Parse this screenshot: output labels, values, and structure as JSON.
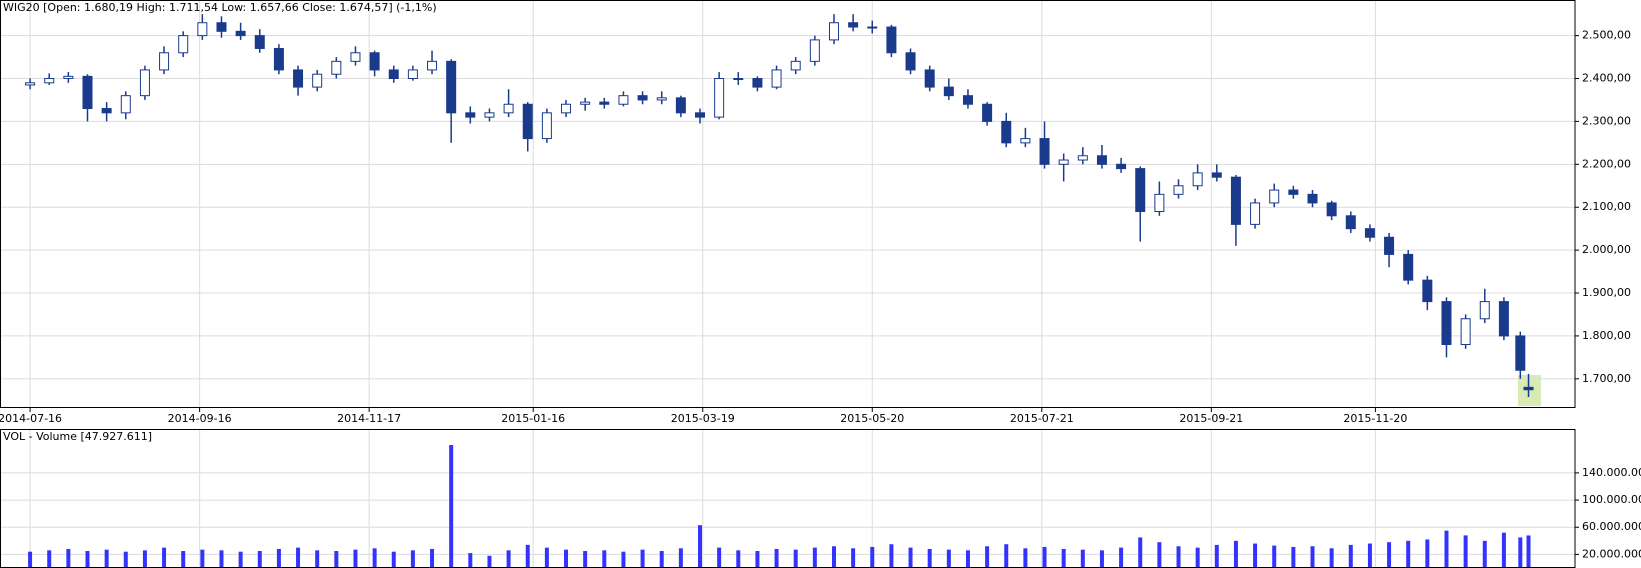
{
  "chart_data": [
    {
      "type": "candlestick",
      "title": "WIG20 [Open: 1.680,19  High: 1.711,54  Low: 1.657,66  Close: 1.674,57] (-1,1%)",
      "up_color": "#ffffff",
      "down_color": "#1a3a8c",
      "edge_color": "#1a3a8c",
      "grid": true,
      "x": [
        "2014-07-16",
        "2014-07-23",
        "2014-07-30",
        "2014-08-06",
        "2014-08-13",
        "2014-08-20",
        "2014-08-27",
        "2014-09-03",
        "2014-09-10",
        "2014-09-17",
        "2014-09-24",
        "2014-10-01",
        "2014-10-08",
        "2014-10-15",
        "2014-10-22",
        "2014-10-29",
        "2014-11-05",
        "2014-11-12",
        "2014-11-19",
        "2014-11-26",
        "2014-12-03",
        "2014-12-10",
        "2014-12-17",
        "2014-12-24",
        "2014-12-31",
        "2015-01-07",
        "2015-01-14",
        "2015-01-21",
        "2015-01-28",
        "2015-02-04",
        "2015-02-11",
        "2015-02-18",
        "2015-02-25",
        "2015-03-04",
        "2015-03-11",
        "2015-03-18",
        "2015-03-25",
        "2015-04-01",
        "2015-04-08",
        "2015-04-15",
        "2015-04-22",
        "2015-04-29",
        "2015-05-06",
        "2015-05-13",
        "2015-05-20",
        "2015-05-27",
        "2015-06-03",
        "2015-06-10",
        "2015-06-17",
        "2015-06-24",
        "2015-07-01",
        "2015-07-08",
        "2015-07-15",
        "2015-07-22",
        "2015-07-29",
        "2015-08-05",
        "2015-08-12",
        "2015-08-19",
        "2015-08-26",
        "2015-09-02",
        "2015-09-09",
        "2015-09-16",
        "2015-09-23",
        "2015-09-30",
        "2015-10-07",
        "2015-10-14",
        "2015-10-21",
        "2015-10-28",
        "2015-11-04",
        "2015-11-11",
        "2015-11-18",
        "2015-11-25",
        "2015-12-02",
        "2015-12-09",
        "2015-12-16",
        "2015-12-23",
        "2015-12-30",
        "2016-01-06",
        "2016-01-12",
        "2016-01-15"
      ],
      "open": [
        2385,
        2390,
        2400,
        2405,
        2330,
        2320,
        2360,
        2420,
        2460,
        2500,
        2530,
        2510,
        2500,
        2470,
        2420,
        2380,
        2410,
        2440,
        2460,
        2420,
        2400,
        2420,
        2440,
        2320,
        2310,
        2320,
        2340,
        2260,
        2320,
        2340,
        2345,
        2340,
        2360,
        2350,
        2355,
        2320,
        2310,
        2400,
        2400,
        2380,
        2420,
        2440,
        2490,
        2530,
        2520,
        2520,
        2460,
        2420,
        2380,
        2360,
        2340,
        2300,
        2250,
        2260,
        2200,
        2210,
        2220,
        2200,
        2190,
        2090,
        2130,
        2150,
        2180,
        2170,
        2060,
        2110,
        2140,
        2130,
        2110,
        2080,
        2050,
        2030,
        1990,
        1930,
        1880,
        1780,
        1840,
        1880,
        1800,
        1680.19
      ],
      "high": [
        2400,
        2412,
        2415,
        2410,
        2345,
        2370,
        2430,
        2475,
        2510,
        2550,
        2545,
        2530,
        2515,
        2480,
        2430,
        2420,
        2450,
        2475,
        2465,
        2430,
        2430,
        2465,
        2445,
        2335,
        2330,
        2375,
        2345,
        2330,
        2350,
        2355,
        2355,
        2370,
        2370,
        2370,
        2360,
        2330,
        2415,
        2415,
        2405,
        2430,
        2450,
        2500,
        2550,
        2550,
        2535,
        2525,
        2470,
        2430,
        2400,
        2375,
        2345,
        2320,
        2285,
        2300,
        2225,
        2240,
        2245,
        2215,
        2195,
        2160,
        2165,
        2200,
        2200,
        2175,
        2120,
        2155,
        2150,
        2140,
        2115,
        2090,
        2060,
        2040,
        2000,
        1940,
        1890,
        1850,
        1910,
        1890,
        1810,
        1711.54
      ],
      "low": [
        2375,
        2385,
        2390,
        2300,
        2300,
        2305,
        2350,
        2410,
        2450,
        2490,
        2495,
        2490,
        2460,
        2410,
        2360,
        2370,
        2400,
        2430,
        2405,
        2390,
        2395,
        2410,
        2250,
        2295,
        2300,
        2310,
        2230,
        2250,
        2310,
        2325,
        2330,
        2335,
        2340,
        2340,
        2310,
        2295,
        2305,
        2385,
        2370,
        2375,
        2410,
        2430,
        2480,
        2510,
        2505,
        2450,
        2410,
        2370,
        2350,
        2330,
        2290,
        2240,
        2240,
        2190,
        2160,
        2200,
        2190,
        2180,
        2020,
        2080,
        2120,
        2140,
        2160,
        2010,
        2050,
        2100,
        2120,
        2100,
        2070,
        2040,
        2020,
        1960,
        1920,
        1860,
        1750,
        1770,
        1830,
        1790,
        1700,
        1657.66
      ],
      "close": [
        2390,
        2400,
        2405,
        2330,
        2320,
        2360,
        2420,
        2460,
        2500,
        2530,
        2510,
        2500,
        2470,
        2420,
        2380,
        2410,
        2440,
        2460,
        2420,
        2400,
        2420,
        2440,
        2320,
        2310,
        2320,
        2340,
        2260,
        2320,
        2340,
        2345,
        2340,
        2360,
        2350,
        2355,
        2320,
        2310,
        2400,
        2400,
        2380,
        2420,
        2440,
        2490,
        2530,
        2520,
        2520,
        2460,
        2420,
        2380,
        2360,
        2340,
        2300,
        2250,
        2260,
        2200,
        2210,
        2220,
        2200,
        2190,
        2090,
        2130,
        2150,
        2180,
        2170,
        2060,
        2110,
        2140,
        2130,
        2110,
        2080,
        2050,
        2030,
        1990,
        1930,
        1880,
        1780,
        1840,
        1880,
        1800,
        1720,
        1674.57
      ],
      "xlim": [
        "2014-07-05",
        "2016-02-01"
      ],
      "xticks": [
        "2014-07-16",
        "2014-09-16",
        "2014-11-17",
        "2015-01-16",
        "2015-03-19",
        "2015-05-20",
        "2015-07-21",
        "2015-09-21",
        "2015-11-20"
      ],
      "ylim": [
        1632,
        2583
      ],
      "yticks": [
        {
          "value": 1700,
          "label": "1.700,00"
        },
        {
          "value": 1800,
          "label": "1.800,00"
        },
        {
          "value": 1900,
          "label": "1.900,00"
        },
        {
          "value": 2000,
          "label": "2.000,00"
        },
        {
          "value": 2100,
          "label": "2.100,00"
        },
        {
          "value": 2200,
          "label": "2.200,00"
        },
        {
          "value": 2300,
          "label": "2.300,00"
        },
        {
          "value": 2400,
          "label": "2.400,00"
        },
        {
          "value": 2500,
          "label": "2.500,00"
        }
      ]
    },
    {
      "type": "bar",
      "title": "VOL - Volume [47.927.611]",
      "color": "#3333ff",
      "grid": true,
      "x": [
        "2014-07-16",
        "2014-07-23",
        "2014-07-30",
        "2014-08-06",
        "2014-08-13",
        "2014-08-20",
        "2014-08-27",
        "2014-09-03",
        "2014-09-10",
        "2014-09-17",
        "2014-09-24",
        "2014-10-01",
        "2014-10-08",
        "2014-10-15",
        "2014-10-22",
        "2014-10-29",
        "2014-11-05",
        "2014-11-12",
        "2014-11-19",
        "2014-11-26",
        "2014-12-03",
        "2014-12-10",
        "2014-12-17",
        "2014-12-24",
        "2014-12-31",
        "2015-01-07",
        "2015-01-14",
        "2015-01-21",
        "2015-01-28",
        "2015-02-04",
        "2015-02-11",
        "2015-02-18",
        "2015-02-25",
        "2015-03-04",
        "2015-03-11",
        "2015-03-18",
        "2015-03-25",
        "2015-04-01",
        "2015-04-08",
        "2015-04-15",
        "2015-04-22",
        "2015-04-29",
        "2015-05-06",
        "2015-05-13",
        "2015-05-20",
        "2015-05-27",
        "2015-06-03",
        "2015-06-10",
        "2015-06-17",
        "2015-06-24",
        "2015-07-01",
        "2015-07-08",
        "2015-07-15",
        "2015-07-22",
        "2015-07-29",
        "2015-08-05",
        "2015-08-12",
        "2015-08-19",
        "2015-08-26",
        "2015-09-02",
        "2015-09-09",
        "2015-09-16",
        "2015-09-23",
        "2015-09-30",
        "2015-10-07",
        "2015-10-14",
        "2015-10-21",
        "2015-10-28",
        "2015-11-04",
        "2015-11-11",
        "2015-11-18",
        "2015-11-25",
        "2015-12-02",
        "2015-12-09",
        "2015-12-16",
        "2015-12-23",
        "2015-12-30",
        "2016-01-06",
        "2016-01-12",
        "2016-01-15"
      ],
      "values": [
        24000000,
        26000000,
        28000000,
        25000000,
        27000000,
        24000000,
        26000000,
        30000000,
        25000000,
        27000000,
        26000000,
        24000000,
        25000000,
        28000000,
        30000000,
        26000000,
        25000000,
        27000000,
        29000000,
        24000000,
        26000000,
        28000000,
        181000000,
        22000000,
        18000000,
        26000000,
        34000000,
        30000000,
        27000000,
        25000000,
        26000000,
        24000000,
        27000000,
        25000000,
        29000000,
        63000000,
        30000000,
        26000000,
        25000000,
        28000000,
        27000000,
        30000000,
        32000000,
        29000000,
        31000000,
        35000000,
        30000000,
        28000000,
        27000000,
        26000000,
        32000000,
        35000000,
        29000000,
        31000000,
        28000000,
        27000000,
        26000000,
        30000000,
        45000000,
        38000000,
        32000000,
        30000000,
        34000000,
        40000000,
        36000000,
        33000000,
        31000000,
        32000000,
        29000000,
        34000000,
        36000000,
        38000000,
        40000000,
        42000000,
        55000000,
        48000000,
        40000000,
        52000000,
        45000000,
        47927611
      ],
      "xlim": [
        "2014-07-05",
        "2016-02-01"
      ],
      "ylim": [
        0,
        204600000
      ],
      "yticks": [
        {
          "value": 20000000,
          "label": "20.000.000"
        },
        {
          "value": 60000000,
          "label": "60.000.000"
        },
        {
          "value": 100000000,
          "label": "100.000.000"
        },
        {
          "value": 140000000,
          "label": "140.000.000"
        }
      ]
    }
  ]
}
